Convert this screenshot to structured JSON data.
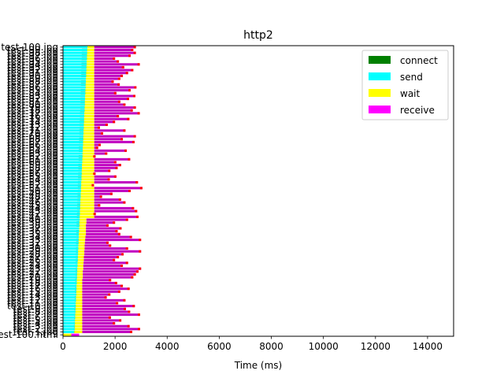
{
  "chart_data": {
    "type": "bar",
    "orientation": "horizontal",
    "stacked": true,
    "title": "http2",
    "xlabel": "Time (ms)",
    "ylabel": "",
    "xlim": [
      0,
      15000
    ],
    "xticks": [
      0,
      2000,
      4000,
      6000,
      8000,
      10000,
      12000,
      14000
    ],
    "grid": false,
    "legend_position": "top-right",
    "series": [
      {
        "name": "connect",
        "color": "#008000"
      },
      {
        "name": "send",
        "color": "#00ffff"
      },
      {
        "name": "wait",
        "color": "#ffff00"
      },
      {
        "name": "receive",
        "color": "#ff00ff"
      }
    ],
    "categories": [
      "test-100.html",
      "test-1.jpg",
      "test-2.jpg",
      "test-3.jpg",
      "test-4.jpg",
      "test-5.jpg",
      "test-6.jpg",
      "test-7.jpg",
      "test-8.jpg",
      "test-9.jpg",
      "test-10.jpg",
      "test-11.jpg",
      "test-12.jpg",
      "test-13.jpg",
      "test-14.jpg",
      "test-15.jpg",
      "test-16.jpg",
      "test-17.jpg",
      "test-18.jpg",
      "test-19.jpg",
      "test-20.jpg",
      "test-21.jpg",
      "test-22.jpg",
      "test-23.jpg",
      "test-24.jpg",
      "test-25.jpg",
      "test-26.jpg",
      "test-27.jpg",
      "test-28.jpg",
      "test-29.jpg",
      "test-30.jpg",
      "test-31.jpg",
      "test-32.jpg",
      "test-33.jpg",
      "test-34.jpg",
      "test-35.jpg",
      "test-36.jpg",
      "test-37.jpg",
      "test-38.jpg",
      "test-39.jpg",
      "test-40.jpg",
      "test-41.jpg",
      "test-42.jpg",
      "test-43.jpg",
      "test-44.jpg",
      "test-45.jpg",
      "test-46.jpg",
      "test-47.jpg",
      "test-48.jpg",
      "test-49.jpg",
      "test-50.jpg",
      "test-51.jpg",
      "test-52.jpg",
      "test-53.jpg",
      "test-54.jpg",
      "test-55.jpg",
      "test-56.jpg",
      "test-57.jpg",
      "test-58.jpg",
      "test-59.jpg",
      "test-60.jpg",
      "test-61.jpg",
      "test-62.jpg",
      "test-63.jpg",
      "test-64.jpg",
      "test-65.jpg",
      "test-66.jpg",
      "test-67.jpg",
      "test-68.jpg",
      "test-69.jpg",
      "test-70.jpg",
      "test-71.jpg",
      "test-72.jpg",
      "test-73.jpg",
      "test-74.jpg",
      "test-75.jpg",
      "test-76.jpg",
      "test-77.jpg",
      "test-78.jpg",
      "test-79.jpg",
      "test-80.jpg",
      "test-81.jpg",
      "test-82.jpg",
      "test-83.jpg",
      "test-84.jpg",
      "test-85.jpg",
      "test-86.jpg",
      "test-87.jpg",
      "test-88.jpg",
      "test-89.jpg",
      "test-90.jpg",
      "test-91.jpg",
      "test-92.jpg",
      "test-93.jpg",
      "test-94.jpg",
      "test-95.jpg",
      "test-96.jpg",
      "test-97.jpg",
      "test-98.jpg",
      "test-99.jpg",
      "test-100.jpg"
    ],
    "rows": [
      [
        0,
        300,
        320,
        0,
        0,
        320,
        620
      ],
      [
        1,
        420,
        430,
        0,
        430,
        740,
        2660
      ],
      [
        2,
        420,
        450,
        0,
        450,
        740,
        2960
      ],
      [
        3,
        420,
        450,
        0,
        450,
        740,
        2560
      ],
      [
        4,
        430,
        460,
        0,
        460,
        740,
        2000
      ],
      [
        5,
        430,
        460,
        0,
        460,
        740,
        2240
      ],
      [
        6,
        430,
        470,
        0,
        470,
        740,
        1840
      ],
      [
        7,
        440,
        470,
        0,
        470,
        740,
        2960
      ],
      [
        8,
        440,
        480,
        0,
        480,
        740,
        2580
      ],
      [
        9,
        440,
        480,
        0,
        480,
        740,
        2420
      ],
      [
        10,
        440,
        490,
        0,
        490,
        740,
        2760
      ],
      [
        11,
        450,
        490,
        0,
        490,
        740,
        2120
      ],
      [
        12,
        450,
        500,
        0,
        500,
        740,
        2400
      ],
      [
        13,
        450,
        500,
        0,
        500,
        740,
        1680
      ],
      [
        14,
        450,
        510,
        0,
        510,
        740,
        1820
      ],
      [
        15,
        460,
        510,
        0,
        510,
        740,
        2200
      ],
      [
        16,
        460,
        520,
        0,
        520,
        740,
        2560
      ],
      [
        17,
        460,
        520,
        0,
        520,
        740,
        2300
      ],
      [
        18,
        470,
        530,
        0,
        530,
        740,
        2080
      ],
      [
        19,
        470,
        530,
        0,
        530,
        740,
        1850
      ],
      [
        20,
        470,
        540,
        0,
        540,
        760,
        2700
      ],
      [
        21,
        470,
        540,
        0,
        540,
        760,
        2800
      ],
      [
        22,
        480,
        550,
        0,
        550,
        760,
        2900
      ],
      [
        23,
        480,
        550,
        0,
        550,
        780,
        3000
      ],
      [
        24,
        480,
        560,
        0,
        560,
        780,
        2300
      ],
      [
        25,
        480,
        560,
        0,
        560,
        790,
        2500
      ],
      [
        26,
        490,
        570,
        0,
        570,
        800,
        2000
      ],
      [
        27,
        490,
        570,
        0,
        570,
        800,
        2150
      ],
      [
        28,
        490,
        580,
        0,
        580,
        820,
        2330
      ],
      [
        29,
        500,
        580,
        0,
        580,
        820,
        3000
      ],
      [
        30,
        500,
        590,
        0,
        590,
        830,
        2500
      ],
      [
        31,
        500,
        590,
        0,
        590,
        830,
        1850
      ],
      [
        32,
        500,
        600,
        0,
        600,
        840,
        1750
      ],
      [
        33,
        510,
        600,
        0,
        600,
        850,
        3000
      ],
      [
        34,
        510,
        610,
        0,
        610,
        860,
        2650
      ],
      [
        35,
        510,
        610,
        0,
        610,
        880,
        2200
      ],
      [
        36,
        510,
        620,
        0,
        620,
        880,
        2100
      ],
      [
        37,
        520,
        620,
        0,
        620,
        880,
        2250
      ],
      [
        38,
        520,
        630,
        0,
        630,
        880,
        1750
      ],
      [
        39,
        520,
        630,
        0,
        630,
        900,
        2000
      ],
      [
        40,
        530,
        640,
        0,
        640,
        900,
        2500
      ],
      [
        41,
        530,
        640,
        0,
        640,
        1200,
        2900
      ],
      [
        42,
        540,
        650,
        0,
        650,
        1200,
        1260
      ],
      [
        43,
        540,
        650,
        0,
        650,
        1200,
        2850
      ],
      [
        44,
        540,
        660,
        0,
        660,
        1200,
        2730
      ],
      [
        45,
        550,
        660,
        0,
        660,
        1200,
        1430
      ],
      [
        46,
        550,
        670,
        0,
        670,
        1200,
        2400
      ],
      [
        47,
        550,
        670,
        0,
        670,
        1200,
        2230
      ],
      [
        48,
        560,
        680,
        0,
        680,
        1200,
        1500
      ],
      [
        49,
        560,
        680,
        0,
        680,
        1200,
        1900
      ],
      [
        50,
        560,
        690,
        0,
        690,
        1200,
        2600
      ],
      [
        51,
        570,
        690,
        0,
        690,
        1200,
        3050
      ],
      [
        52,
        570,
        700,
        0,
        700,
        1200,
        1190
      ],
      [
        53,
        570,
        700,
        0,
        700,
        1200,
        2880
      ],
      [
        54,
        580,
        710,
        0,
        710,
        1200,
        1800
      ],
      [
        55,
        580,
        710,
        0,
        710,
        1200,
        2050
      ],
      [
        56,
        580,
        720,
        0,
        720,
        1200,
        1250
      ],
      [
        57,
        590,
        720,
        0,
        720,
        1200,
        1820
      ],
      [
        58,
        590,
        730,
        0,
        730,
        1200,
        2100
      ],
      [
        59,
        590,
        730,
        0,
        730,
        1200,
        2230
      ],
      [
        60,
        600,
        740,
        0,
        740,
        1200,
        2050
      ],
      [
        61,
        600,
        740,
        0,
        740,
        1200,
        2580
      ],
      [
        62,
        600,
        750,
        0,
        750,
        1200,
        1250
      ],
      [
        63,
        610,
        750,
        0,
        750,
        1200,
        1700
      ],
      [
        64,
        610,
        760,
        0,
        760,
        1200,
        2450
      ],
      [
        65,
        610,
        760,
        0,
        760,
        1200,
        1350
      ],
      [
        66,
        620,
        770,
        0,
        770,
        1200,
        1450
      ],
      [
        67,
        620,
        770,
        0,
        770,
        1200,
        2750
      ],
      [
        68,
        620,
        780,
        0,
        780,
        1200,
        2300
      ],
      [
        69,
        630,
        780,
        0,
        780,
        1200,
        2800
      ],
      [
        70,
        630,
        790,
        0,
        790,
        1200,
        1540
      ],
      [
        71,
        630,
        790,
        0,
        790,
        1200,
        2400
      ],
      [
        72,
        640,
        800,
        0,
        800,
        1200,
        1420
      ],
      [
        73,
        640,
        800,
        0,
        800,
        1200,
        1720
      ],
      [
        74,
        640,
        810,
        0,
        810,
        1200,
        2000
      ],
      [
        75,
        650,
        810,
        0,
        810,
        1200,
        2550
      ],
      [
        76,
        650,
        820,
        0,
        820,
        1200,
        2150
      ],
      [
        77,
        650,
        820,
        0,
        820,
        1200,
        2950
      ],
      [
        78,
        660,
        830,
        0,
        830,
        1200,
        2680
      ],
      [
        79,
        660,
        830,
        0,
        830,
        1200,
        2800
      ],
      [
        80,
        660,
        840,
        0,
        840,
        1200,
        2400
      ],
      [
        81,
        670,
        840,
        0,
        840,
        1200,
        2200
      ],
      [
        82,
        670,
        850,
        0,
        850,
        1200,
        2540
      ],
      [
        83,
        670,
        850,
        0,
        850,
        1200,
        2780
      ],
      [
        84,
        680,
        860,
        0,
        860,
        1200,
        2050
      ],
      [
        85,
        680,
        860,
        0,
        860,
        1200,
        2600
      ],
      [
        86,
        680,
        870,
        0,
        870,
        1200,
        2820
      ],
      [
        87,
        690,
        870,
        0,
        870,
        1200,
        2180
      ],
      [
        88,
        690,
        880,
        0,
        880,
        1200,
        1950
      ],
      [
        89,
        690,
        880,
        0,
        880,
        1200,
        2200
      ],
      [
        90,
        700,
        890,
        0,
        890,
        1200,
        2300
      ],
      [
        91,
        700,
        890,
        0,
        890,
        1200,
        2500
      ],
      [
        92,
        700,
        900,
        0,
        900,
        1200,
        2700
      ],
      [
        93,
        710,
        900,
        0,
        900,
        1200,
        2350
      ],
      [
        94,
        710,
        910,
        0,
        910,
        1200,
        2950
      ],
      [
        95,
        710,
        910,
        0,
        910,
        1200,
        2150
      ],
      [
        96,
        720,
        920,
        0,
        920,
        1200,
        2000
      ],
      [
        97,
        720,
        920,
        0,
        920,
        1200,
        2600
      ],
      [
        98,
        720,
        930,
        0,
        930,
        1200,
        2800
      ],
      [
        99,
        730,
        930,
        0,
        930,
        1200,
        2700
      ],
      [
        100,
        730,
        940,
        0,
        940,
        1200,
        2800
      ]
    ]
  }
}
